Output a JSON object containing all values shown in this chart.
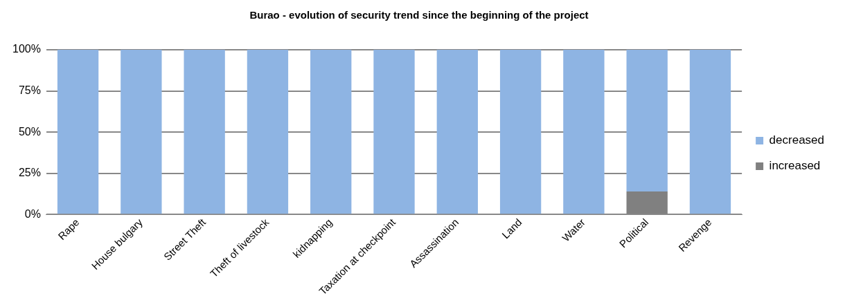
{
  "chart_data": {
    "type": "bar",
    "title": "Burao - evolution of security trend since the beginning of the project",
    "categories": [
      "Rape",
      "House bulgary",
      "Street Theft",
      "Theft of livestock",
      "kidnapping",
      "Taxation at checkpoint",
      "Assassination",
      "Land",
      "Water",
      "Political",
      "Revenge"
    ],
    "stacked": true,
    "series": [
      {
        "name": "increased",
        "color": "#808080",
        "values": [
          0,
          0,
          0,
          0,
          0,
          0,
          0,
          0,
          0,
          14,
          0
        ]
      },
      {
        "name": "decreased",
        "color": "#8eb4e3",
        "values": [
          100,
          100,
          100,
          100,
          100,
          100,
          100,
          100,
          100,
          86,
          100
        ]
      }
    ],
    "ylim": [
      0,
      100
    ],
    "yticks": [
      {
        "value": 0,
        "label": "0%"
      },
      {
        "value": 25,
        "label": "25%"
      },
      {
        "value": 50,
        "label": "50%"
      },
      {
        "value": 75,
        "label": "75%"
      },
      {
        "value": 100,
        "label": "100%"
      }
    ],
    "grid": "y",
    "legend": "right"
  }
}
